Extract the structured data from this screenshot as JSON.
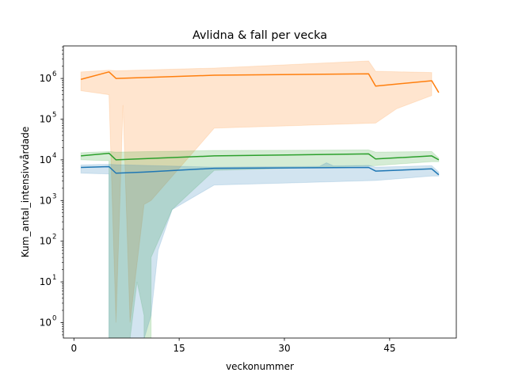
{
  "chart_data": {
    "type": "line",
    "title": "Avlidna & fall per vecka",
    "xlabel": "veckonummer",
    "ylabel": "Kum_antal_intensivvårdade",
    "yscale": "log",
    "xlim": [
      -1.5,
      54.5
    ],
    "ylim_log10": [
      -0.38,
      6.8
    ],
    "x_ticks": [
      {
        "value": 0,
        "label": "0"
      },
      {
        "value": 15,
        "label": "15"
      },
      {
        "value": 30,
        "label": "30"
      },
      {
        "value": 45,
        "label": "45"
      }
    ],
    "y_ticks": [
      {
        "value": 1,
        "base": "10",
        "exp": "0"
      },
      {
        "value": 10,
        "base": "10",
        "exp": "1"
      },
      {
        "value": 100,
        "base": "10",
        "exp": "2"
      },
      {
        "value": 1000,
        "base": "10",
        "exp": "3"
      },
      {
        "value": 10000,
        "base": "10",
        "exp": "4"
      },
      {
        "value": 100000,
        "base": "10",
        "exp": "5"
      },
      {
        "value": 1000000,
        "base": "10",
        "exp": "6"
      }
    ],
    "grid": false,
    "legend": false,
    "series": [
      {
        "color": "#ff7f0e",
        "line": [
          [
            1,
            950000
          ],
          [
            5,
            1450000
          ],
          [
            6,
            1000000
          ],
          [
            20,
            1200000
          ],
          [
            42,
            1300000
          ],
          [
            43,
            650000
          ],
          [
            51,
            880000
          ],
          [
            52,
            450000
          ]
        ],
        "band_upper": [
          [
            1,
            1450000
          ],
          [
            5,
            1600000
          ],
          [
            6,
            1550000
          ],
          [
            20,
            1800000
          ],
          [
            42,
            2700000
          ],
          [
            43,
            1500000
          ],
          [
            51,
            1400000
          ]
        ],
        "band_lower": [
          [
            51,
            380000
          ],
          [
            46,
            180000
          ],
          [
            43,
            80000
          ],
          [
            20,
            60000
          ],
          [
            11,
            1000
          ],
          [
            10,
            800
          ],
          [
            8,
            1
          ],
          [
            7,
            220000
          ],
          [
            6,
            1
          ],
          [
            5,
            400000
          ],
          [
            1,
            500000
          ]
        ]
      },
      {
        "color": "#2ca02c",
        "line": [
          [
            1,
            12500
          ],
          [
            5,
            14500
          ],
          [
            6,
            10000
          ],
          [
            20,
            12500
          ],
          [
            42,
            14000
          ],
          [
            43,
            10500
          ],
          [
            51,
            12500
          ],
          [
            52,
            10000
          ]
        ],
        "band_upper": [
          [
            1,
            15000
          ],
          [
            5,
            16000
          ],
          [
            6,
            15500
          ],
          [
            20,
            17000
          ],
          [
            42,
            17500
          ],
          [
            43,
            15500
          ],
          [
            51,
            16000
          ],
          [
            52,
            11000
          ]
        ],
        "band_lower": [
          [
            52,
            9000
          ],
          [
            51,
            9000
          ],
          [
            43,
            7200
          ],
          [
            20,
            5500
          ],
          [
            14,
            600
          ],
          [
            11,
            40
          ],
          [
            11,
            0.4
          ],
          [
            10,
            0.4
          ],
          [
            10,
            1.5
          ],
          [
            9,
            10
          ],
          [
            8,
            0.4
          ],
          [
            6,
            0.4
          ],
          [
            5,
            0.4
          ],
          [
            5,
            9500
          ],
          [
            1,
            10000
          ]
        ]
      },
      {
        "color": "#1f77b4",
        "line": [
          [
            1,
            6500
          ],
          [
            5,
            6800
          ],
          [
            6,
            4700
          ],
          [
            10,
            5000
          ],
          [
            20,
            6200
          ],
          [
            42,
            6500
          ],
          [
            43,
            5300
          ],
          [
            51,
            6000
          ],
          [
            52,
            4300
          ]
        ],
        "band_upper": [
          [
            1,
            7500
          ],
          [
            5,
            7800
          ],
          [
            6,
            7600
          ],
          [
            20,
            6600
          ],
          [
            35,
            6900
          ],
          [
            36,
            8500
          ],
          [
            37,
            7100
          ],
          [
            42,
            7300
          ],
          [
            43,
            6600
          ],
          [
            51,
            7200
          ],
          [
            52,
            5000
          ]
        ],
        "band_lower": [
          [
            52,
            4000
          ],
          [
            51,
            4000
          ],
          [
            43,
            3100
          ],
          [
            20,
            2400
          ],
          [
            14,
            600
          ],
          [
            12,
            60
          ],
          [
            11,
            1.5
          ],
          [
            10,
            0.4
          ],
          [
            5,
            0.4
          ],
          [
            5,
            4500
          ],
          [
            1,
            4700
          ]
        ]
      }
    ]
  }
}
